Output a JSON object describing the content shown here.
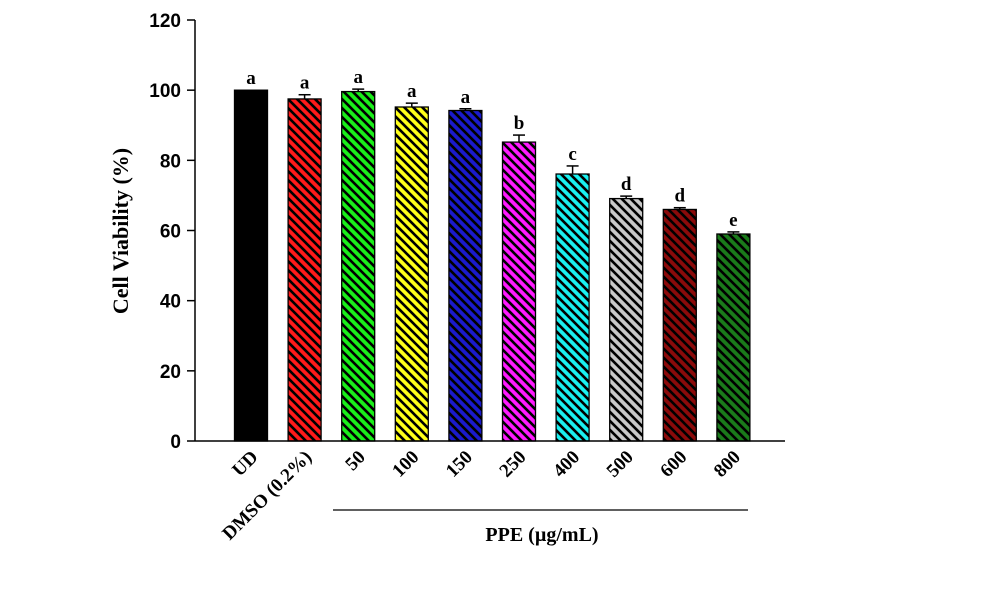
{
  "chart_data": {
    "type": "bar",
    "title": "",
    "xlabel": "",
    "ylabel": "Cell Viability (%)",
    "ylim": [
      0,
      120
    ],
    "yticks": [
      0,
      20,
      40,
      60,
      80,
      100,
      120
    ],
    "grid": false,
    "legend": "none",
    "group_label": "PPE (µg/mL)",
    "categories": [
      "UD",
      "DMSO (0.2%)",
      "50",
      "100",
      "150",
      "250",
      "400",
      "500",
      "600",
      "800"
    ],
    "values": [
      100,
      97.5,
      99.6,
      95.2,
      94.2,
      85.2,
      76.1,
      69.1,
      66.0,
      59.0
    ],
    "errors": [
      0,
      1.2,
      0.7,
      1.1,
      0.5,
      2.0,
      2.3,
      0.7,
      0.5,
      0.6
    ],
    "significance": [
      "a",
      "a",
      "a",
      "a",
      "a",
      "b",
      "c",
      "d",
      "d",
      "e"
    ],
    "colors": [
      "#000000",
      "#ff1a1a",
      "#1aee1a",
      "#ffff1a",
      "#1a1acc",
      "#ff1aff",
      "#1af0f0",
      "#c8c8c8",
      "#8b0a0a",
      "#1a7a1a"
    ],
    "patterns": [
      "solid",
      "hatch",
      "hatch",
      "hatch",
      "hatch",
      "hatch",
      "hatch",
      "hatch",
      "hatch",
      "hatch"
    ]
  }
}
